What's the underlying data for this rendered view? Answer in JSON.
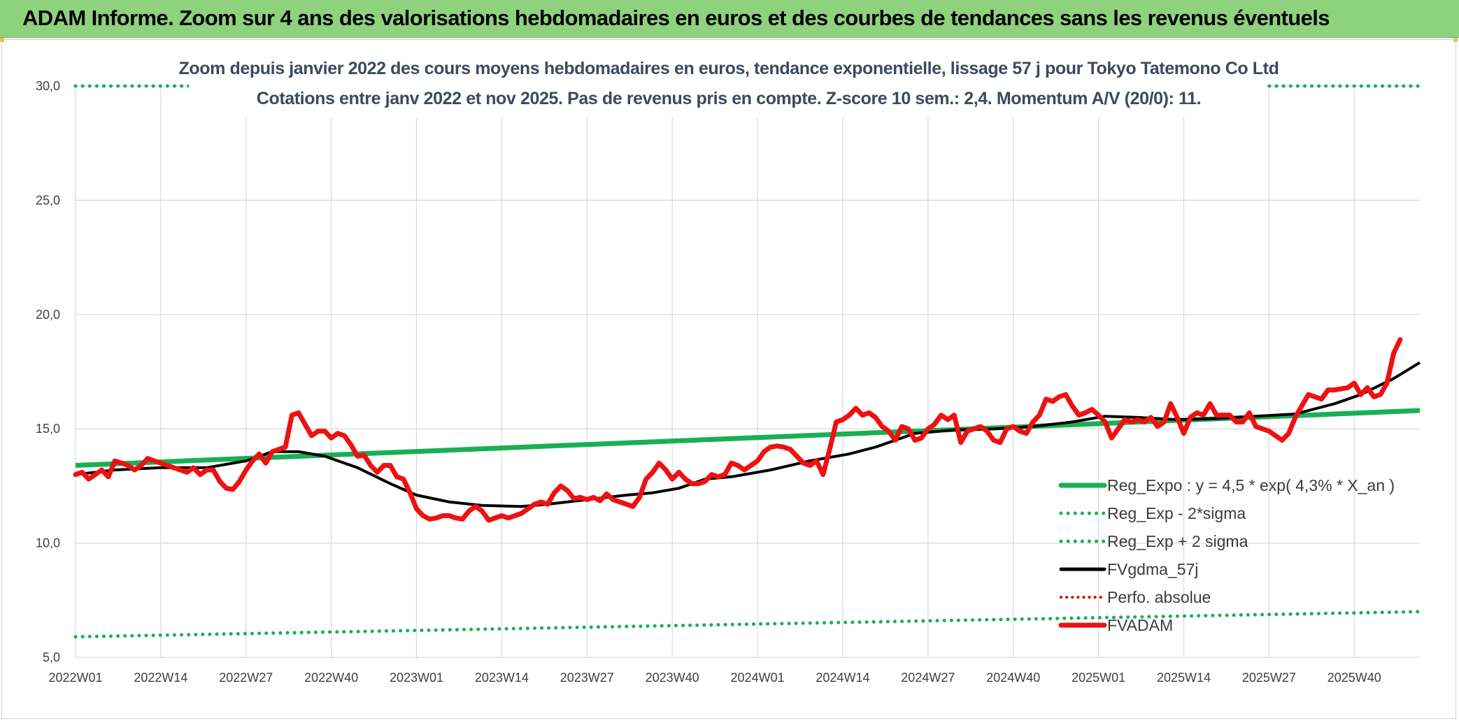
{
  "banner": {
    "text": "ADAM Informe. Zoom sur 4 ans des valorisations hebdomadaires en euros et des courbes de tendances sans les revenus éventuels"
  },
  "colors": {
    "banner_bg": "#8fd27e",
    "trend_green": "#1aaf54",
    "smooth_black": "#000000",
    "price_red": "#ee1111",
    "perfo_red": "#dd0000",
    "grid": "#d9d9d9",
    "title_text": "#3b4a5e"
  },
  "chart_data": {
    "type": "line",
    "title": "Zoom depuis janvier 2022 des cours moyens hebdomadaires en euros, tendance exponentielle, lissage 57 j pour Tokyo Tatemono Co Ltd",
    "subtitle": "Cotations entre janv 2022 et nov 2025. Pas de revenus pris en compte. Z-score 10 sem.: 2,4. Momentum A/V (20/0): 11.",
    "xlabel": "",
    "ylabel": "",
    "ylim": [
      5,
      30
    ],
    "y_ticks": [
      "5,0",
      "10,0",
      "15,0",
      "20,0",
      "25,0",
      "30,0"
    ],
    "x_ticks": [
      "2022W01",
      "2022W14",
      "2022W27",
      "2022W40",
      "2023W01",
      "2023W14",
      "2023W27",
      "2023W40",
      "2024W01",
      "2024W14",
      "2024W27",
      "2024W40",
      "2025W01",
      "2025W14",
      "2025W27",
      "2025W40"
    ],
    "x_range_weeks": [
      0,
      205
    ],
    "grid": true,
    "legend_position": "bottom-right",
    "series": [
      {
        "name": "Reg_Expo : y = 4,5 * exp( 4,3% *  X_an )",
        "style": "solid-green",
        "start": 13.4,
        "end": 15.8
      },
      {
        "name": "Reg_Exp - 2*sigma",
        "style": "dotted-green",
        "start": 5.9,
        "end": 7.0
      },
      {
        "name": "Reg_Exp + 2 sigma",
        "style": "dotted-green",
        "start": 30.0,
        "end": 30.0
      },
      {
        "name": "FVgdma_57j",
        "style": "solid-black",
        "points": [
          [
            0,
            13.0
          ],
          [
            6,
            13.2
          ],
          [
            13,
            13.3
          ],
          [
            20,
            13.3
          ],
          [
            26,
            13.6
          ],
          [
            30,
            14.0
          ],
          [
            34,
            14.0
          ],
          [
            38,
            13.8
          ],
          [
            43,
            13.3
          ],
          [
            48,
            12.6
          ],
          [
            52,
            12.1
          ],
          [
            57,
            11.8
          ],
          [
            62,
            11.65
          ],
          [
            68,
            11.6
          ],
          [
            72,
            11.7
          ],
          [
            78,
            11.9
          ],
          [
            84,
            12.1
          ],
          [
            88,
            12.2
          ],
          [
            92,
            12.4
          ],
          [
            96,
            12.8
          ],
          [
            100,
            12.9
          ],
          [
            106,
            13.2
          ],
          [
            112,
            13.6
          ],
          [
            118,
            13.9
          ],
          [
            122,
            14.2
          ],
          [
            128,
            14.8
          ],
          [
            134,
            14.95
          ],
          [
            140,
            15.0
          ],
          [
            146,
            15.1
          ],
          [
            152,
            15.3
          ],
          [
            157,
            15.55
          ],
          [
            162,
            15.5
          ],
          [
            168,
            15.4
          ],
          [
            174,
            15.45
          ],
          [
            180,
            15.55
          ],
          [
            186,
            15.65
          ],
          [
            192,
            16.1
          ],
          [
            196,
            16.5
          ],
          [
            201,
            17.2
          ],
          [
            205,
            17.9
          ]
        ]
      },
      {
        "name": "Perfo. absolue",
        "style": "dotted-red",
        "points": []
      },
      {
        "name": "FVADAM",
        "style": "solid-red",
        "points": [
          [
            0,
            13.0
          ],
          [
            1,
            13.1
          ],
          [
            2,
            12.8
          ],
          [
            3,
            13.0
          ],
          [
            4,
            13.2
          ],
          [
            5,
            12.9
          ],
          [
            6,
            13.6
          ],
          [
            7,
            13.5
          ],
          [
            8,
            13.4
          ],
          [
            9,
            13.2
          ],
          [
            10,
            13.4
          ],
          [
            11,
            13.7
          ],
          [
            12,
            13.6
          ],
          [
            13,
            13.5
          ],
          [
            14,
            13.4
          ],
          [
            15,
            13.3
          ],
          [
            16,
            13.2
          ],
          [
            17,
            13.1
          ],
          [
            18,
            13.3
          ],
          [
            19,
            13.0
          ],
          [
            20,
            13.2
          ],
          [
            21,
            13.2
          ],
          [
            22,
            12.7
          ],
          [
            23,
            12.4
          ],
          [
            24,
            12.35
          ],
          [
            25,
            12.7
          ],
          [
            26,
            13.2
          ],
          [
            27,
            13.6
          ],
          [
            28,
            13.9
          ],
          [
            29,
            13.5
          ],
          [
            30,
            14.0
          ],
          [
            31,
            14.1
          ],
          [
            32,
            14.2
          ],
          [
            33,
            15.6
          ],
          [
            34,
            15.7
          ],
          [
            35,
            15.2
          ],
          [
            36,
            14.7
          ],
          [
            37,
            14.9
          ],
          [
            38,
            14.9
          ],
          [
            39,
            14.6
          ],
          [
            40,
            14.8
          ],
          [
            41,
            14.7
          ],
          [
            42,
            14.3
          ],
          [
            43,
            13.8
          ],
          [
            44,
            13.85
          ],
          [
            45,
            13.4
          ],
          [
            46,
            13.1
          ],
          [
            47,
            13.4
          ],
          [
            48,
            13.4
          ],
          [
            49,
            12.9
          ],
          [
            50,
            12.8
          ],
          [
            51,
            12.2
          ],
          [
            52,
            11.5
          ],
          [
            53,
            11.2
          ],
          [
            54,
            11.05
          ],
          [
            55,
            11.1
          ],
          [
            56,
            11.2
          ],
          [
            57,
            11.2
          ],
          [
            58,
            11.1
          ],
          [
            59,
            11.05
          ],
          [
            60,
            11.4
          ],
          [
            61,
            11.6
          ],
          [
            62,
            11.4
          ],
          [
            63,
            11.0
          ],
          [
            64,
            11.1
          ],
          [
            65,
            11.2
          ],
          [
            66,
            11.1
          ],
          [
            67,
            11.2
          ],
          [
            68,
            11.3
          ],
          [
            69,
            11.5
          ],
          [
            70,
            11.7
          ],
          [
            71,
            11.8
          ],
          [
            72,
            11.7
          ],
          [
            73,
            12.2
          ],
          [
            74,
            12.5
          ],
          [
            75,
            12.3
          ],
          [
            76,
            11.95
          ],
          [
            77,
            12.0
          ],
          [
            78,
            11.9
          ],
          [
            79,
            12.0
          ],
          [
            80,
            11.85
          ],
          [
            81,
            12.15
          ],
          [
            82,
            11.9
          ],
          [
            83,
            11.8
          ],
          [
            84,
            11.7
          ],
          [
            85,
            11.6
          ],
          [
            86,
            12.0
          ],
          [
            87,
            12.8
          ],
          [
            88,
            13.1
          ],
          [
            89,
            13.5
          ],
          [
            90,
            13.2
          ],
          [
            91,
            12.8
          ],
          [
            92,
            13.1
          ],
          [
            93,
            12.8
          ],
          [
            94,
            12.6
          ],
          [
            95,
            12.6
          ],
          [
            96,
            12.7
          ],
          [
            97,
            13.0
          ],
          [
            98,
            12.9
          ],
          [
            99,
            13.0
          ],
          [
            100,
            13.5
          ],
          [
            101,
            13.4
          ],
          [
            102,
            13.2
          ],
          [
            103,
            13.4
          ],
          [
            104,
            13.6
          ],
          [
            105,
            14.0
          ],
          [
            106,
            14.2
          ],
          [
            107,
            14.25
          ],
          [
            108,
            14.2
          ],
          [
            109,
            14.1
          ],
          [
            110,
            13.8
          ],
          [
            111,
            13.5
          ],
          [
            112,
            13.4
          ],
          [
            113,
            13.6
          ],
          [
            114,
            13.0
          ],
          [
            115,
            14.1
          ],
          [
            116,
            15.3
          ],
          [
            117,
            15.4
          ],
          [
            118,
            15.6
          ],
          [
            119,
            15.9
          ],
          [
            120,
            15.6
          ],
          [
            121,
            15.7
          ],
          [
            122,
            15.5
          ],
          [
            123,
            15.1
          ],
          [
            124,
            14.9
          ],
          [
            125,
            14.5
          ],
          [
            126,
            15.1
          ],
          [
            127,
            15.0
          ],
          [
            128,
            14.5
          ],
          [
            129,
            14.6
          ],
          [
            130,
            15.0
          ],
          [
            131,
            15.2
          ],
          [
            132,
            15.6
          ],
          [
            133,
            15.4
          ],
          [
            134,
            15.6
          ],
          [
            135,
            14.4
          ],
          [
            136,
            14.9
          ],
          [
            137,
            15.0
          ],
          [
            138,
            15.1
          ],
          [
            139,
            14.9
          ],
          [
            140,
            14.5
          ],
          [
            141,
            14.4
          ],
          [
            142,
            15.0
          ],
          [
            143,
            15.1
          ],
          [
            144,
            14.9
          ],
          [
            145,
            14.8
          ],
          [
            146,
            15.3
          ],
          [
            147,
            15.6
          ],
          [
            148,
            16.3
          ],
          [
            149,
            16.2
          ],
          [
            150,
            16.4
          ],
          [
            151,
            16.5
          ],
          [
            152,
            16.0
          ],
          [
            153,
            15.6
          ],
          [
            154,
            15.7
          ],
          [
            155,
            15.85
          ],
          [
            156,
            15.6
          ],
          [
            157,
            15.3
          ],
          [
            158,
            14.6
          ],
          [
            159,
            15.0
          ],
          [
            160,
            15.4
          ],
          [
            161,
            15.3
          ],
          [
            162,
            15.4
          ],
          [
            163,
            15.3
          ],
          [
            164,
            15.5
          ],
          [
            165,
            15.1
          ],
          [
            166,
            15.3
          ],
          [
            167,
            16.1
          ],
          [
            168,
            15.5
          ],
          [
            169,
            14.8
          ],
          [
            170,
            15.5
          ],
          [
            171,
            15.7
          ],
          [
            172,
            15.6
          ],
          [
            173,
            16.1
          ],
          [
            174,
            15.6
          ],
          [
            175,
            15.6
          ],
          [
            176,
            15.6
          ],
          [
            177,
            15.3
          ],
          [
            178,
            15.3
          ],
          [
            179,
            15.7
          ],
          [
            180,
            15.1
          ],
          [
            181,
            15.0
          ],
          [
            182,
            14.9
          ],
          [
            183,
            14.7
          ],
          [
            184,
            14.5
          ],
          [
            185,
            14.8
          ],
          [
            186,
            15.5
          ],
          [
            187,
            16.0
          ],
          [
            188,
            16.5
          ],
          [
            189,
            16.4
          ],
          [
            190,
            16.3
          ],
          [
            191,
            16.7
          ],
          [
            192,
            16.7
          ],
          [
            193,
            16.75
          ],
          [
            194,
            16.8
          ],
          [
            195,
            17.0
          ],
          [
            196,
            16.5
          ],
          [
            197,
            16.8
          ],
          [
            198,
            16.4
          ],
          [
            199,
            16.5
          ],
          [
            200,
            17.0
          ],
          [
            201,
            18.3
          ],
          [
            202,
            18.9
          ]
        ]
      }
    ]
  }
}
